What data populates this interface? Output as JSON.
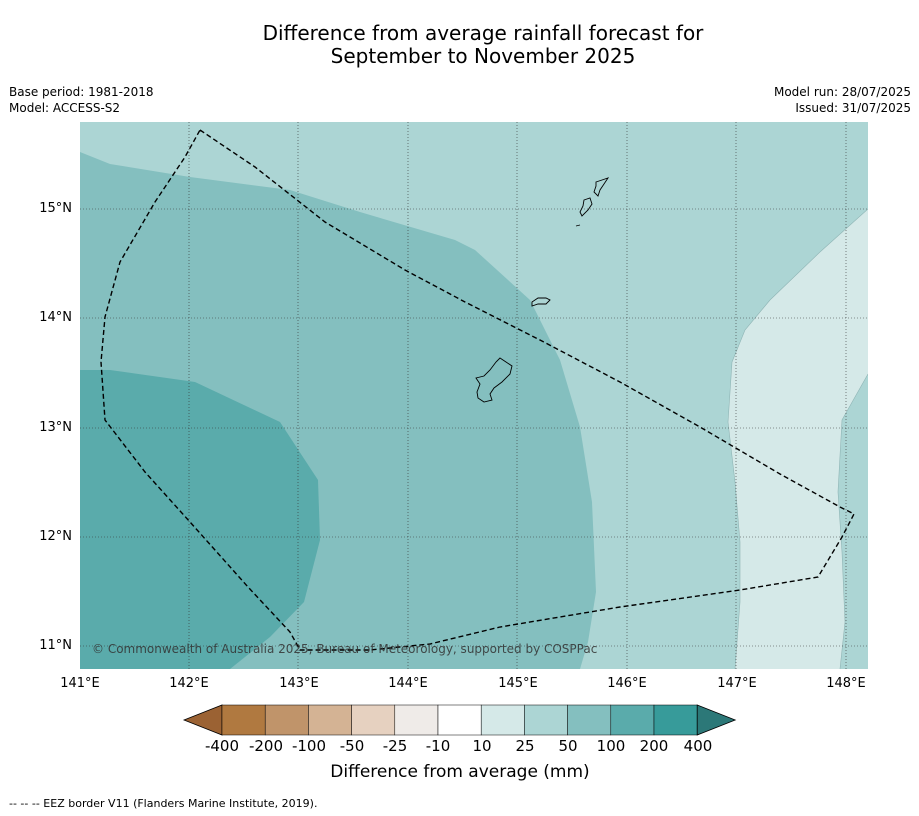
{
  "title_line1": "Difference from average rainfall forecast for",
  "title_line2": "September to November 2025",
  "meta_left": [
    "Base period: 1981-2018",
    "Model: ACCESS-S2"
  ],
  "meta_right": [
    "Model run: 28/07/2025",
    "Issued: 31/07/2025"
  ],
  "lat_labels": [
    "15°N",
    "14°N",
    "13°N",
    "12°N",
    "11°N"
  ],
  "lon_labels": [
    "141°E",
    "142°E",
    "143°E",
    "144°E",
    "145°E",
    "146°E",
    "147°E",
    "148°E"
  ],
  "copyright": "© Commonwealth of Australia 2025, Bureau of Meteorology, supported by COSPPac",
  "colorbar": {
    "title": "Difference from average (mm)",
    "labels": [
      "-400",
      "-200",
      "-100",
      "-50",
      "-25",
      "-10",
      "10",
      "25",
      "50",
      "100",
      "200",
      "400"
    ],
    "colors": [
      "#9b6233",
      "#b07940",
      "#c0946a",
      "#d4b394",
      "#e6d1c0",
      "#efebe8",
      "#ffffff",
      "#d5e9e8",
      "#acd5d4",
      "#84bfbf",
      "#5aabab",
      "#379b9a",
      "#2c7878"
    ]
  },
  "map_colors": {
    "c200": "#5aabab",
    "c100": "#84bfbf",
    "c50": "#acd5d4",
    "c25": "#d5e9e8"
  },
  "footer": "--  --  -- EEZ border V11 (Flanders Marine Institute, 2019)."
}
